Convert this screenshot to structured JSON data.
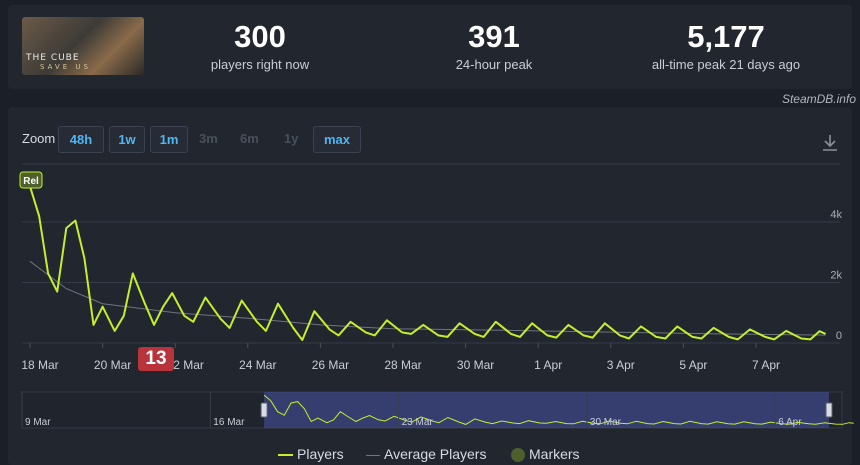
{
  "header": {
    "game_logo_text": "THE CUBE",
    "game_logo_sub": "SAVE US",
    "stats": [
      {
        "value": "300",
        "label": "players right now"
      },
      {
        "value": "391",
        "label": "24-hour peak"
      },
      {
        "value": "5,177",
        "label": "all-time peak 21 days ago"
      }
    ]
  },
  "credit": "SteamDB.info",
  "toolbar": {
    "zoom_label": "Zoom",
    "zoom_options": [
      "48h",
      "1w",
      "1m",
      "3m",
      "6m",
      "1y",
      "max"
    ],
    "active_options": [
      "48h",
      "1w",
      "1m",
      "max"
    ]
  },
  "icons": {
    "download": "download-icon"
  },
  "colors": {
    "players": "#c5ee2c",
    "average": "#6e7480",
    "marker": "#4e5f2c",
    "navigator_fill": "#3e4a8c"
  },
  "chart_data": {
    "type": "line",
    "x_ticks": [
      "18 Mar",
      "20 Mar",
      "22 Mar",
      "24 Mar",
      "26 Mar",
      "28 Mar",
      "30 Mar",
      "1 Apr",
      "3 Apr",
      "5 Apr",
      "7 Apr"
    ],
    "y_ticks": [
      "0",
      "2k",
      "4k"
    ],
    "ylim": [
      0,
      5800
    ],
    "grid": true,
    "legend_position": "bottom",
    "marker": {
      "label": "Rel",
      "date": "2025-03-18"
    },
    "series": [
      {
        "name": "Players",
        "points": [
          [
            "2025-03-18 00:00",
            5177
          ],
          [
            "2025-03-18 06:00",
            4200
          ],
          [
            "2025-03-18 12:00",
            2300
          ],
          [
            "2025-03-18 18:00",
            1700
          ],
          [
            "2025-03-19 00:00",
            3800
          ],
          [
            "2025-03-19 06:00",
            4050
          ],
          [
            "2025-03-19 12:00",
            2800
          ],
          [
            "2025-03-19 18:00",
            600
          ],
          [
            "2025-03-20 00:00",
            1200
          ],
          [
            "2025-03-20 08:00",
            400
          ],
          [
            "2025-03-20 14:00",
            900
          ],
          [
            "2025-03-20 20:00",
            2300
          ],
          [
            "2025-03-21 04:00",
            1300
          ],
          [
            "2025-03-21 10:00",
            600
          ],
          [
            "2025-03-21 16:00",
            1200
          ],
          [
            "2025-03-21 22:00",
            1650
          ],
          [
            "2025-03-22 06:00",
            900
          ],
          [
            "2025-03-22 12:00",
            700
          ],
          [
            "2025-03-22 20:00",
            1500
          ],
          [
            "2025-03-23 06:00",
            800
          ],
          [
            "2025-03-23 12:00",
            500
          ],
          [
            "2025-03-23 20:00",
            1400
          ],
          [
            "2025-03-24 06:00",
            700
          ],
          [
            "2025-03-24 12:00",
            400
          ],
          [
            "2025-03-24 20:00",
            1300
          ],
          [
            "2025-03-25 06:00",
            500
          ],
          [
            "2025-03-25 12:00",
            100
          ],
          [
            "2025-03-25 20:00",
            1050
          ],
          [
            "2025-03-26 06:00",
            450
          ],
          [
            "2025-03-26 12:00",
            250
          ],
          [
            "2025-03-26 20:00",
            700
          ],
          [
            "2025-03-27 06:00",
            350
          ],
          [
            "2025-03-27 12:00",
            250
          ],
          [
            "2025-03-27 20:00",
            750
          ],
          [
            "2025-03-28 06:00",
            350
          ],
          [
            "2025-03-28 12:00",
            300
          ],
          [
            "2025-03-28 20:00",
            600
          ],
          [
            "2025-03-29 06:00",
            250
          ],
          [
            "2025-03-29 12:00",
            200
          ],
          [
            "2025-03-29 20:00",
            650
          ],
          [
            "2025-03-30 06:00",
            300
          ],
          [
            "2025-03-30 12:00",
            200
          ],
          [
            "2025-03-30 20:00",
            700
          ],
          [
            "2025-03-31 06:00",
            300
          ],
          [
            "2025-03-31 12:00",
            200
          ],
          [
            "2025-03-31 20:00",
            650
          ],
          [
            "2025-04-01 06:00",
            250
          ],
          [
            "2025-04-01 12:00",
            180
          ],
          [
            "2025-04-01 20:00",
            600
          ],
          [
            "2025-04-02 06:00",
            250
          ],
          [
            "2025-04-02 12:00",
            180
          ],
          [
            "2025-04-02 20:00",
            650
          ],
          [
            "2025-04-03 06:00",
            250
          ],
          [
            "2025-04-03 12:00",
            150
          ],
          [
            "2025-04-03 20:00",
            550
          ],
          [
            "2025-04-04 06:00",
            200
          ],
          [
            "2025-04-04 12:00",
            150
          ],
          [
            "2025-04-04 20:00",
            550
          ],
          [
            "2025-04-05 06:00",
            200
          ],
          [
            "2025-04-05 12:00",
            150
          ],
          [
            "2025-04-05 20:00",
            500
          ],
          [
            "2025-04-06 06:00",
            200
          ],
          [
            "2025-04-06 12:00",
            120
          ],
          [
            "2025-04-06 20:00",
            450
          ],
          [
            "2025-04-07 06:00",
            200
          ],
          [
            "2025-04-07 12:00",
            120
          ],
          [
            "2025-04-07 20:00",
            400
          ],
          [
            "2025-04-08 06:00",
            150
          ],
          [
            "2025-04-08 12:00",
            120
          ],
          [
            "2025-04-08 18:00",
            391
          ],
          [
            "2025-04-08 22:00",
            300
          ]
        ]
      },
      {
        "name": "Average Players",
        "points": [
          [
            "2025-03-18 00:00",
            2700
          ],
          [
            "2025-03-19 00:00",
            1800
          ],
          [
            "2025-03-20 00:00",
            1300
          ],
          [
            "2025-03-22 00:00",
            1000
          ],
          [
            "2025-03-24 00:00",
            820
          ],
          [
            "2025-03-26 00:00",
            600
          ],
          [
            "2025-03-28 00:00",
            470
          ],
          [
            "2025-03-31 00:00",
            420
          ],
          [
            "2025-04-03 00:00",
            360
          ],
          [
            "2025-04-06 00:00",
            300
          ],
          [
            "2025-04-08 22:00",
            260
          ]
        ]
      }
    ],
    "navigator": {
      "ticks": [
        "9 Mar",
        "16 Mar",
        "23 Mar",
        "30 Mar",
        "6 Apr"
      ],
      "range_start": "2025-03-18",
      "range_end": "2025-04-08"
    }
  },
  "legend": [
    {
      "label": "Players"
    },
    {
      "label": "Average Players"
    },
    {
      "label": "Markers"
    }
  ]
}
